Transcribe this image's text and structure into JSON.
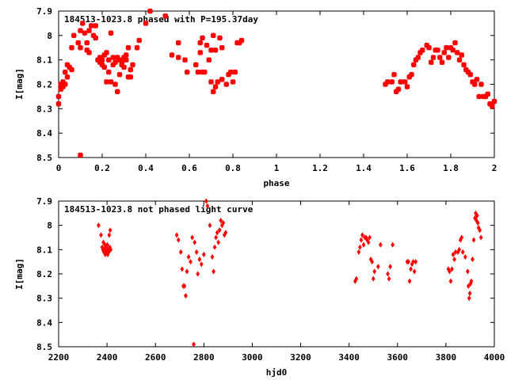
{
  "chart_data": [
    {
      "type": "scatter",
      "title": "184513-1023.8 phased with P=195.37day",
      "xlabel": "phase",
      "ylabel": "I[mag]",
      "xlim": [
        0,
        2
      ],
      "ylim": [
        7.9,
        8.5
      ],
      "y_inverted": true,
      "x_ticks": [
        "0",
        "0.2",
        "0.4",
        "0.6",
        "0.8",
        "1",
        "1.2",
        "1.4",
        "1.6",
        "1.8",
        "2"
      ],
      "x_tick_values": [
        0,
        0.2,
        0.4,
        0.6,
        0.8,
        1.0,
        1.2,
        1.4,
        1.6,
        1.8,
        2.0
      ],
      "y_ticks": [
        "7.9",
        "8",
        "8.1",
        "8.2",
        "8.3",
        "8.4",
        "8.5"
      ],
      "y_tick_values": [
        7.9,
        8.0,
        8.1,
        8.2,
        8.3,
        8.4,
        8.5
      ],
      "grid": false,
      "legend": "none",
      "marker_color": "#ff0000",
      "marker": "star",
      "series": [
        {
          "points": [
            [
              0.0,
              8.28
            ],
            [
              0.0,
              8.25
            ],
            [
              0.01,
              8.22
            ],
            [
              0.01,
              8.2
            ],
            [
              0.02,
              8.19
            ],
            [
              0.02,
              8.21
            ],
            [
              0.03,
              8.2
            ],
            [
              0.03,
              8.15
            ],
            [
              0.04,
              8.12
            ],
            [
              0.04,
              8.17
            ],
            [
              0.05,
              8.13
            ],
            [
              0.06,
              8.14
            ],
            [
              0.06,
              8.05
            ],
            [
              0.07,
              8.0
            ],
            [
              0.09,
              8.03
            ],
            [
              0.1,
              8.05
            ],
            [
              0.1,
              7.98
            ],
            [
              0.11,
              7.95
            ],
            [
              0.12,
              7.99
            ],
            [
              0.13,
              8.03
            ],
            [
              0.13,
              8.06
            ],
            [
              0.14,
              8.07
            ],
            [
              0.14,
              7.98
            ],
            [
              0.15,
              7.96
            ],
            [
              0.16,
              8.0
            ],
            [
              0.17,
              8.01
            ],
            [
              0.17,
              7.96
            ],
            [
              0.18,
              8.1
            ],
            [
              0.19,
              8.09
            ],
            [
              0.19,
              8.11
            ],
            [
              0.2,
              8.12
            ],
            [
              0.2,
              8.1
            ],
            [
              0.21,
              8.08
            ],
            [
              0.21,
              8.13
            ],
            [
              0.22,
              8.07
            ],
            [
              0.22,
              8.19
            ],
            [
              0.23,
              8.1
            ],
            [
              0.23,
              8.15
            ],
            [
              0.24,
              7.99
            ],
            [
              0.24,
              8.19
            ],
            [
              0.25,
              8.12
            ],
            [
              0.25,
              8.09
            ],
            [
              0.26,
              8.11
            ],
            [
              0.26,
              8.2
            ],
            [
              0.27,
              8.09
            ],
            [
              0.27,
              8.23
            ],
            [
              0.28,
              8.1
            ],
            [
              0.28,
              8.16
            ],
            [
              0.29,
              8.11
            ],
            [
              0.29,
              8.12
            ],
            [
              0.3,
              8.09
            ],
            [
              0.3,
              8.13
            ],
            [
              0.31,
              8.08
            ],
            [
              0.31,
              8.1
            ],
            [
              0.32,
              8.05
            ],
            [
              0.32,
              8.17
            ],
            [
              0.33,
              8.14
            ],
            [
              0.33,
              8.17
            ],
            [
              0.34,
              8.12
            ],
            [
              0.36,
              8.05
            ],
            [
              0.37,
              8.02
            ],
            [
              0.4,
              7.95
            ],
            [
              0.42,
              7.9
            ],
            [
              0.49,
              7.92
            ],
            [
              0.52,
              8.08
            ],
            [
              0.55,
              8.09
            ],
            [
              0.55,
              8.03
            ],
            [
              0.58,
              8.1
            ],
            [
              0.59,
              8.15
            ],
            [
              0.63,
              8.12
            ],
            [
              0.64,
              8.15
            ],
            [
              0.65,
              8.07
            ],
            [
              0.65,
              8.03
            ],
            [
              0.66,
              8.15
            ],
            [
              0.66,
              8.01
            ],
            [
              0.67,
              8.15
            ],
            [
              0.68,
              8.04
            ],
            [
              0.69,
              8.1
            ],
            [
              0.7,
              8.19
            ],
            [
              0.7,
              8.06
            ],
            [
              0.71,
              8.23
            ],
            [
              0.71,
              8.0
            ],
            [
              0.72,
              8.21
            ],
            [
              0.72,
              8.06
            ],
            [
              0.73,
              8.19
            ],
            [
              0.74,
              8.01
            ],
            [
              0.75,
              8.05
            ],
            [
              0.75,
              8.18
            ],
            [
              0.77,
              8.2
            ],
            [
              0.78,
              8.16
            ],
            [
              0.79,
              8.15
            ],
            [
              0.8,
              8.19
            ],
            [
              0.81,
              8.15
            ],
            [
              0.82,
              8.03
            ],
            [
              0.83,
              8.03
            ],
            [
              0.84,
              8.02
            ],
            [
              0.1,
              8.49
            ],
            [
              1.5,
              8.2
            ],
            [
              1.51,
              8.19
            ],
            [
              1.53,
              8.19
            ],
            [
              1.54,
              8.16
            ],
            [
              1.55,
              8.23
            ],
            [
              1.56,
              8.22
            ],
            [
              1.57,
              8.19
            ],
            [
              1.59,
              8.19
            ],
            [
              1.6,
              8.21
            ],
            [
              1.61,
              8.17
            ],
            [
              1.62,
              8.16
            ],
            [
              1.63,
              8.12
            ],
            [
              1.64,
              8.1
            ],
            [
              1.65,
              8.09
            ],
            [
              1.66,
              8.07
            ],
            [
              1.67,
              8.06
            ],
            [
              1.69,
              8.04
            ],
            [
              1.7,
              8.05
            ],
            [
              1.71,
              8.11
            ],
            [
              1.72,
              8.09
            ],
            [
              1.73,
              8.06
            ],
            [
              1.74,
              8.06
            ],
            [
              1.75,
              8.09
            ],
            [
              1.76,
              8.11
            ],
            [
              1.77,
              8.07
            ],
            [
              1.78,
              8.05
            ],
            [
              1.79,
              8.09
            ],
            [
              1.8,
              8.05
            ],
            [
              1.81,
              8.06
            ],
            [
              1.82,
              8.03
            ],
            [
              1.83,
              8.07
            ],
            [
              1.84,
              8.1
            ],
            [
              1.85,
              8.08
            ],
            [
              1.86,
              8.12
            ],
            [
              1.87,
              8.14
            ],
            [
              1.88,
              8.15
            ],
            [
              1.89,
              8.16
            ],
            [
              1.9,
              8.19
            ],
            [
              1.91,
              8.2
            ],
            [
              1.92,
              8.18
            ],
            [
              1.93,
              8.25
            ],
            [
              1.94,
              8.2
            ],
            [
              1.95,
              8.25
            ],
            [
              1.96,
              8.25
            ],
            [
              1.97,
              8.24
            ],
            [
              1.98,
              8.28
            ],
            [
              1.99,
              8.29
            ],
            [
              2.0,
              8.27
            ]
          ]
        }
      ]
    },
    {
      "type": "scatter",
      "title": "184513-1023.8 not phased light curve",
      "xlabel": "hjd0",
      "ylabel": "I[mag]",
      "xlim": [
        2200,
        4000
      ],
      "ylim": [
        7.9,
        8.5
      ],
      "y_inverted": true,
      "x_ticks": [
        "2200",
        "2400",
        "2600",
        "2800",
        "3000",
        "3200",
        "3400",
        "3600",
        "3800",
        "4000"
      ],
      "x_tick_values": [
        2200,
        2400,
        2600,
        2800,
        3000,
        3200,
        3400,
        3600,
        3800,
        4000
      ],
      "y_ticks": [
        "7.9",
        "8",
        "8.1",
        "8.2",
        "8.3",
        "8.4",
        "8.5"
      ],
      "y_tick_values": [
        7.9,
        8.0,
        8.1,
        8.2,
        8.3,
        8.4,
        8.5
      ],
      "grid": false,
      "legend": "none",
      "marker_color": "#ff0000",
      "marker": "diamond",
      "series": [
        {
          "points": [
            [
              2365,
              8.0
            ],
            [
              2375,
              8.04
            ],
            [
              2380,
              8.09
            ],
            [
              2383,
              8.1
            ],
            [
              2385,
              8.07
            ],
            [
              2387,
              8.11
            ],
            [
              2389,
              8.1
            ],
            [
              2391,
              8.08
            ],
            [
              2393,
              8.12
            ],
            [
              2395,
              8.09
            ],
            [
              2397,
              8.11
            ],
            [
              2399,
              8.1
            ],
            [
              2401,
              8.08
            ],
            [
              2403,
              8.12
            ],
            [
              2405,
              8.1
            ],
            [
              2407,
              8.11
            ],
            [
              2409,
              8.04
            ],
            [
              2411,
              8.09
            ],
            [
              2413,
              8.02
            ],
            [
              2415,
              8.1
            ],
            [
              2688,
              8.04
            ],
            [
              2695,
              8.06
            ],
            [
              2705,
              8.11
            ],
            [
              2710,
              8.18
            ],
            [
              2715,
              8.25
            ],
            [
              2720,
              8.25
            ],
            [
              2725,
              8.29
            ],
            [
              2730,
              8.19
            ],
            [
              2737,
              8.13
            ],
            [
              2745,
              8.15
            ],
            [
              2752,
              8.05
            ],
            [
              2758,
              8.49
            ],
            [
              2762,
              8.07
            ],
            [
              2770,
              8.11
            ],
            [
              2775,
              8.2
            ],
            [
              2782,
              8.14
            ],
            [
              2790,
              8.16
            ],
            [
              2800,
              8.12
            ],
            [
              2810,
              7.9
            ],
            [
              2815,
              7.92
            ],
            [
              2825,
              8.0
            ],
            [
              2835,
              8.13
            ],
            [
              2840,
              8.19
            ],
            [
              2845,
              8.09
            ],
            [
              2850,
              8.05
            ],
            [
              2855,
              8.03
            ],
            [
              2860,
              8.07
            ],
            [
              2865,
              8.02
            ],
            [
              2870,
              7.98
            ],
            [
              2875,
              8.0
            ],
            [
              2880,
              7.99
            ],
            [
              2885,
              8.04
            ],
            [
              2890,
              8.03
            ],
            [
              3425,
              8.23
            ],
            [
              3430,
              8.22
            ],
            [
              3440,
              8.11
            ],
            [
              3445,
              8.09
            ],
            [
              3450,
              8.06
            ],
            [
              3455,
              8.04
            ],
            [
              3460,
              8.08
            ],
            [
              3465,
              8.05
            ],
            [
              3470,
              8.05
            ],
            [
              3475,
              8.06
            ],
            [
              3480,
              8.07
            ],
            [
              3485,
              8.05
            ],
            [
              3490,
              8.14
            ],
            [
              3495,
              8.15
            ],
            [
              3500,
              8.22
            ],
            [
              3505,
              8.19
            ],
            [
              3520,
              8.17
            ],
            [
              3530,
              8.08
            ],
            [
              3560,
              8.2
            ],
            [
              3565,
              8.22
            ],
            [
              3570,
              8.17
            ],
            [
              3580,
              8.08
            ],
            [
              3640,
              8.15
            ],
            [
              3645,
              8.15
            ],
            [
              3650,
              8.23
            ],
            [
              3655,
              8.18
            ],
            [
              3660,
              8.16
            ],
            [
              3665,
              8.15
            ],
            [
              3670,
              8.19
            ],
            [
              3675,
              8.15
            ],
            [
              3810,
              8.18
            ],
            [
              3815,
              8.19
            ],
            [
              3820,
              8.23
            ],
            [
              3825,
              8.18
            ],
            [
              3830,
              8.12
            ],
            [
              3835,
              8.14
            ],
            [
              3840,
              8.11
            ],
            [
              3850,
              8.11
            ],
            [
              3855,
              8.1
            ],
            [
              3860,
              8.06
            ],
            [
              3865,
              8.05
            ],
            [
              3870,
              8.11
            ],
            [
              3880,
              8.13
            ],
            [
              3890,
              8.19
            ],
            [
              3893,
              8.25
            ],
            [
              3896,
              8.3
            ],
            [
              3899,
              8.28
            ],
            [
              3902,
              8.24
            ],
            [
              3905,
              8.23
            ],
            [
              3910,
              8.14
            ],
            [
              3915,
              8.06
            ],
            [
              3920,
              7.97
            ],
            [
              3923,
              7.95
            ],
            [
              3926,
              7.98
            ],
            [
              3929,
              7.96
            ],
            [
              3932,
              7.99
            ],
            [
              3935,
              8.01
            ],
            [
              3940,
              8.02
            ],
            [
              3945,
              8.05
            ]
          ]
        }
      ]
    }
  ]
}
